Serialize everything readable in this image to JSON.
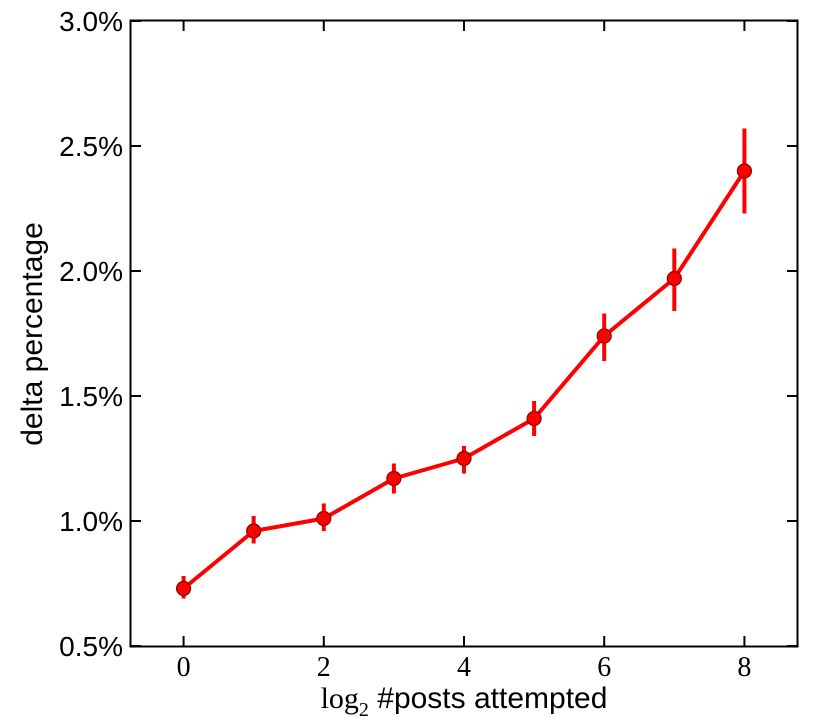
{
  "chart_data": {
    "type": "line",
    "title": "",
    "xlabel_parts": {
      "log": "log",
      "base": "2",
      "rest": " #posts attempted"
    },
    "ylabel": "delta percentage",
    "xlim": [
      -0.75,
      8.75
    ],
    "ylim": [
      0.5,
      3.0
    ],
    "xticks": [
      0,
      2,
      4,
      6,
      8
    ],
    "xtick_labels": [
      "0",
      "2",
      "4",
      "6",
      "8"
    ],
    "yticks": [
      0.5,
      1.0,
      1.5,
      2.0,
      2.5,
      3.0
    ],
    "ytick_labels": [
      "0.5%",
      "1.0%",
      "1.5%",
      "2.0%",
      "2.5%",
      "3.0%"
    ],
    "grid": false,
    "series": [
      {
        "color": "#ff0000",
        "x": [
          0,
          1,
          2,
          3,
          4,
          5,
          6,
          7,
          8
        ],
        "y": [
          0.73,
          0.96,
          1.01,
          1.17,
          1.25,
          1.41,
          1.74,
          1.97,
          2.4
        ],
        "err_low": [
          0.69,
          0.91,
          0.96,
          1.11,
          1.19,
          1.34,
          1.64,
          1.84,
          2.23
        ],
        "err_high": [
          0.78,
          1.02,
          1.07,
          1.23,
          1.3,
          1.48,
          1.83,
          2.09,
          2.57
        ]
      }
    ]
  }
}
